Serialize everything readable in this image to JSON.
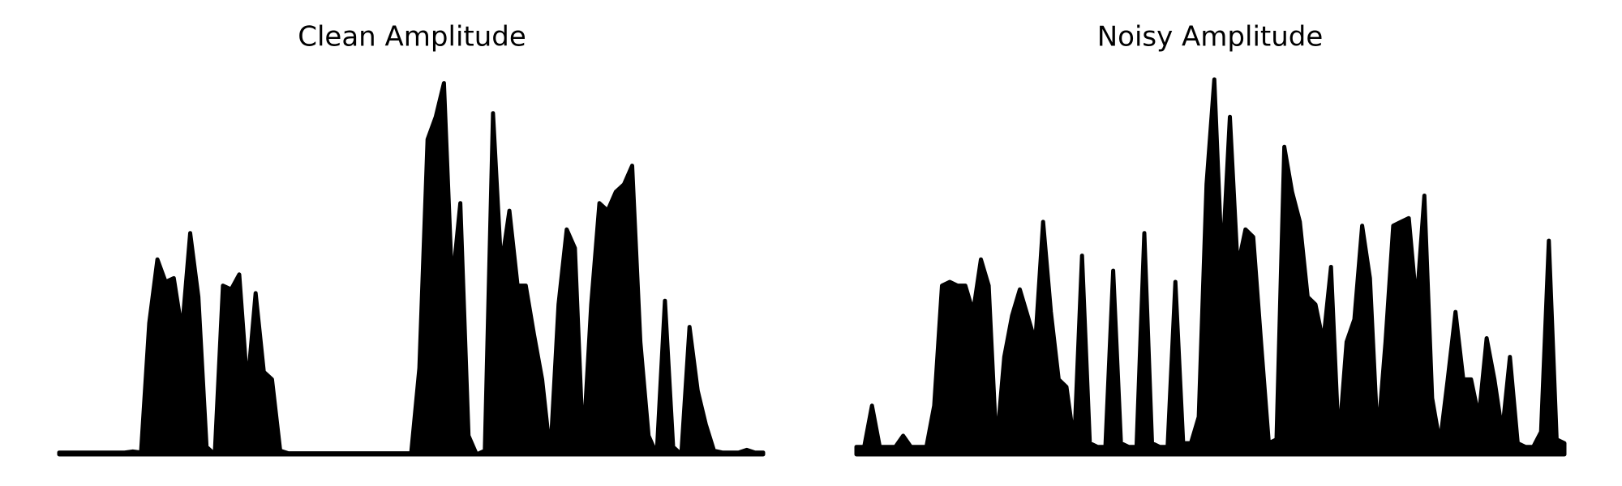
{
  "chart_data": [
    {
      "type": "area",
      "title": "Clean Amplitude",
      "color": "#000000",
      "ylim": [
        0,
        1
      ],
      "values": [
        0.005,
        0.005,
        0.005,
        0.005,
        0.005,
        0.005,
        0.005,
        0.005,
        0.005,
        0.008,
        0.005,
        0.35,
        0.52,
        0.46,
        0.47,
        0.33,
        0.59,
        0.42,
        0.02,
        0.0,
        0.45,
        0.44,
        0.48,
        0.18,
        0.43,
        0.22,
        0.2,
        0.01,
        0.003,
        0.003,
        0.003,
        0.003,
        0.003,
        0.003,
        0.003,
        0.003,
        0.003,
        0.003,
        0.003,
        0.003,
        0.003,
        0.003,
        0.003,
        0.003,
        0.23,
        0.84,
        0.9,
        0.99,
        0.45,
        0.67,
        0.05,
        0.0,
        0.01,
        0.91,
        0.5,
        0.65,
        0.45,
        0.45,
        0.32,
        0.2,
        0.0,
        0.4,
        0.6,
        0.55,
        0.02,
        0.4,
        0.67,
        0.65,
        0.7,
        0.72,
        0.77,
        0.3,
        0.05,
        0.0,
        0.41,
        0.02,
        0.0,
        0.34,
        0.17,
        0.08,
        0.01,
        0.005,
        0.005,
        0.005,
        0.012,
        0.005,
        0.005
      ]
    },
    {
      "type": "area",
      "title": "Noisy Amplitude",
      "color": "#000000",
      "ylim": [
        0,
        1
      ],
      "values": [
        0.02,
        0.02,
        0.13,
        0.02,
        0.02,
        0.02,
        0.05,
        0.02,
        0.02,
        0.02,
        0.13,
        0.45,
        0.46,
        0.45,
        0.45,
        0.38,
        0.52,
        0.45,
        0.02,
        0.26,
        0.37,
        0.44,
        0.37,
        0.3,
        0.62,
        0.38,
        0.2,
        0.18,
        0.03,
        0.53,
        0.03,
        0.02,
        0.02,
        0.49,
        0.03,
        0.02,
        0.02,
        0.59,
        0.03,
        0.02,
        0.02,
        0.46,
        0.03,
        0.03,
        0.1,
        0.72,
        1.0,
        0.5,
        0.9,
        0.5,
        0.6,
        0.58,
        0.3,
        0.03,
        0.04,
        0.82,
        0.7,
        0.62,
        0.42,
        0.4,
        0.3,
        0.5,
        0.03,
        0.3,
        0.36,
        0.61,
        0.47,
        0.04,
        0.3,
        0.61,
        0.62,
        0.63,
        0.4,
        0.69,
        0.15,
        0.03,
        0.2,
        0.38,
        0.2,
        0.2,
        0.1,
        0.31,
        0.2,
        0.06,
        0.26,
        0.03,
        0.02,
        0.02,
        0.06,
        0.57,
        0.04,
        0.03
      ]
    }
  ]
}
